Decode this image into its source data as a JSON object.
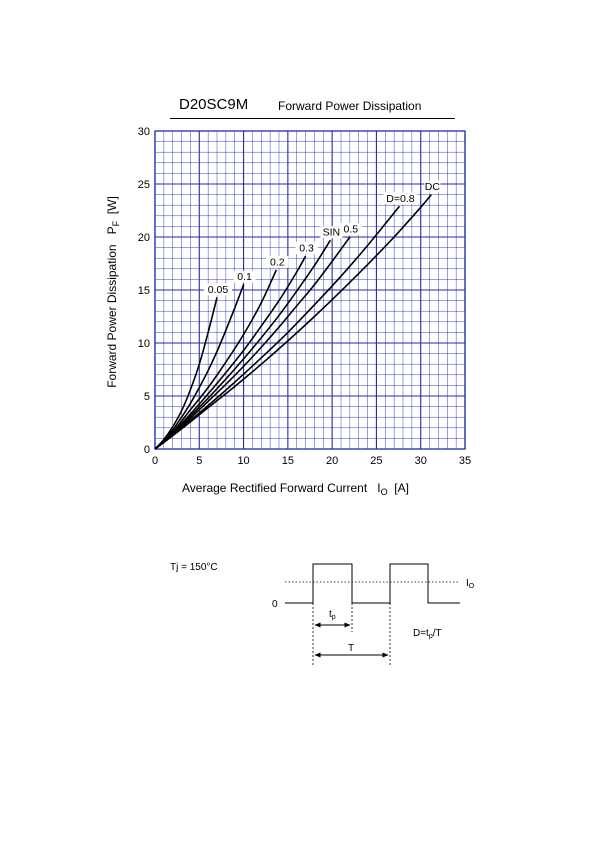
{
  "header": {
    "part_number": "D20SC9M",
    "chart_title": "Forward Power Dissipation"
  },
  "chart_data": {
    "type": "line",
    "title": "D20SC9M Forward Power Dissipation",
    "ylabel_main": "Forward Power Dissipation",
    "ylabel_symbol": "P",
    "ylabel_sub": "F",
    "ylabel_unit": "[W]",
    "xlabel_main": "Average Rectified Forward Current",
    "xlabel_symbol": "I",
    "xlabel_sub": "O",
    "xlabel_unit": "[A]",
    "xlim": [
      0,
      35
    ],
    "ylim": [
      0,
      30
    ],
    "xticks": [
      0,
      5,
      10,
      15,
      20,
      25,
      30,
      35
    ],
    "yticks": [
      0,
      5,
      10,
      15,
      20,
      25,
      30
    ],
    "grid": true,
    "series": [
      {
        "name": "0.05",
        "label": "0.05",
        "x": [
          0,
          1,
          2,
          3,
          4,
          5,
          6,
          7
        ],
        "y": [
          0,
          0.9,
          2.1,
          3.6,
          5.6,
          8.0,
          11.0,
          14.3
        ]
      },
      {
        "name": "0.1",
        "label": "0.1",
        "x": [
          0,
          1,
          2,
          3,
          4,
          5,
          6,
          7,
          8,
          9,
          10
        ],
        "y": [
          0,
          0.8,
          1.8,
          3.0,
          4.3,
          5.8,
          7.4,
          9.2,
          11.2,
          13.3,
          15.5
        ]
      },
      {
        "name": "0.2",
        "label": "0.2",
        "x": [
          0,
          2,
          4,
          6,
          8,
          10,
          12,
          13.7
        ],
        "y": [
          0,
          1.6,
          3.7,
          5.8,
          8.2,
          10.8,
          13.8,
          16.9
        ]
      },
      {
        "name": "0.3",
        "label": "0.3",
        "x": [
          0,
          2,
          4,
          6,
          8,
          10,
          12,
          14,
          16,
          17
        ],
        "y": [
          0,
          1.5,
          3.3,
          5.2,
          7.2,
          9.3,
          11.6,
          14.0,
          16.7,
          18.2
        ]
      },
      {
        "name": "SIN",
        "label": "SIN",
        "x": [
          0,
          2,
          4,
          6,
          8,
          10,
          12,
          14,
          16,
          18,
          19.8
        ],
        "y": [
          0,
          1.4,
          3.1,
          4.8,
          6.6,
          8.5,
          10.5,
          12.6,
          14.9,
          17.3,
          19.7
        ]
      },
      {
        "name": "0.5",
        "label": "0.5",
        "x": [
          0,
          2,
          4,
          6,
          8,
          10,
          12,
          14,
          16,
          18,
          20,
          22
        ],
        "y": [
          0,
          1.3,
          2.9,
          4.5,
          6.1,
          7.8,
          9.6,
          11.5,
          13.5,
          15.5,
          17.7,
          20.0
        ]
      },
      {
        "name": "D=0.8",
        "label": "D=0.8",
        "x": [
          0,
          3,
          6,
          9,
          12,
          15,
          18,
          21,
          24,
          27.6
        ],
        "y": [
          0,
          2.0,
          4.1,
          6.3,
          8.6,
          11.0,
          13.6,
          16.3,
          19.2,
          22.9
        ]
      },
      {
        "name": "DC",
        "label": "DC",
        "x": [
          0,
          3,
          6,
          9,
          12,
          15,
          18,
          21,
          24,
          27,
          30,
          31.2
        ],
        "y": [
          0,
          1.9,
          3.9,
          5.9,
          8.0,
          10.2,
          12.5,
          14.9,
          17.4,
          20.0,
          22.8,
          24.0
        ]
      }
    ]
  },
  "waveform": {
    "tj_label": "Tj = 150°C",
    "zero_label": "0",
    "io_symbol": "I",
    "io_sub": "O",
    "tp_symbol": "t",
    "tp_sub": "p",
    "period_label": "T",
    "duty_prefix": "D=t",
    "duty_sub": "p",
    "duty_suffix": "/T"
  }
}
